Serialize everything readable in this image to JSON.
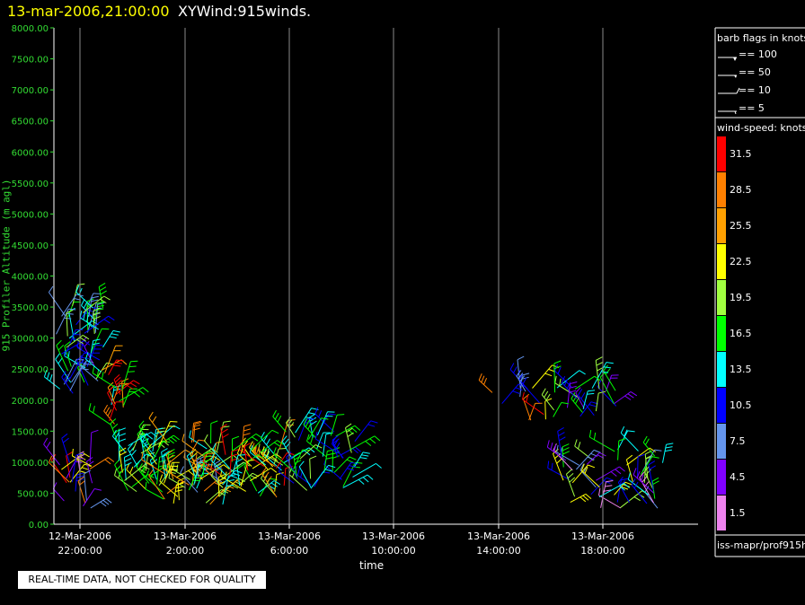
{
  "header": {
    "datetime": "13-mar-2006,21:00:00",
    "title": "XYWind:915winds."
  },
  "warning_text": "REAL-TIME DATA, NOT CHECKED FOR QUALITY",
  "legend": {
    "barb_title": "barb flags in knots",
    "barbs": [
      {
        "label": "== 100"
      },
      {
        "label": "== 50"
      },
      {
        "label": "== 10"
      },
      {
        "label": "== 5"
      }
    ],
    "wind_title": "wind-speed: knots",
    "bins": [
      {
        "label": "31.5",
        "color": "#ff0000"
      },
      {
        "label": "28.5",
        "color": "#ff8000"
      },
      {
        "label": "25.5",
        "color": "#ffa000"
      },
      {
        "label": "22.5",
        "color": "#ffff00"
      },
      {
        "label": "19.5",
        "color": "#a0ff40"
      },
      {
        "label": "16.5",
        "color": "#00ff00"
      },
      {
        "label": "13.5",
        "color": "#00ffff"
      },
      {
        "label": "10.5",
        "color": "#0000ff"
      },
      {
        "label": "7.5",
        "color": "#6495ed"
      },
      {
        "label": "4.5",
        "color": "#8000ff"
      },
      {
        "label": "1.5",
        "color": "#ee82ee"
      }
    ],
    "footer": "iss-mapr/prof915h"
  },
  "chart_data": {
    "type": "scatter",
    "title": "XYWind:915winds.",
    "xlabel": "time",
    "ylabel": "915 Profiler Altitude (m agl)",
    "ylim": [
      0,
      8000
    ],
    "ytick_labels": [
      "0.00",
      "500.00",
      "1000.00",
      "1500.00",
      "2000.00",
      "2500.00",
      "3000.00",
      "3500.00",
      "4000.00",
      "4500.00",
      "5000.00",
      "5500.00",
      "6000.00",
      "6500.00",
      "7000.00",
      "7500.00",
      "8000.00"
    ],
    "xtick_labels": [
      [
        "12-Mar-2006",
        "22:00:00"
      ],
      [
        "13-Mar-2006",
        "2:00:00"
      ],
      [
        "13-Mar-2006",
        "6:00:00"
      ],
      [
        "13-Mar-2006",
        "10:00:00"
      ],
      [
        "13-Mar-2006",
        "14:00:00"
      ],
      [
        "13-Mar-2006",
        "18:00:00"
      ]
    ],
    "grid": "vertical",
    "clusters": [
      {
        "time": "12-Mar 21:00-22:00",
        "alt_range_m": [
          2000,
          3450
        ],
        "speed_kt": "7.5-19.5"
      },
      {
        "time": "12-Mar 22:30-23:15",
        "alt_range_m": [
          1600,
          2500
        ],
        "speed_kt": "13.5-31.5"
      },
      {
        "time": "12-Mar 21:10-22:00",
        "alt_range_m": [
          300,
          1050
        ],
        "speed_kt": "4.5-31.5"
      },
      {
        "time": "12-Mar 23:30-13-Mar 8:30",
        "alt_range_m": [
          450,
          1450
        ],
        "speed_kt": "10.5-28.5"
      },
      {
        "time": "13-Mar 13:30-16:30",
        "alt_range_m": [
          1700,
          2200
        ],
        "speed_kt": "10.5-31.5"
      },
      {
        "time": "13-Mar 16:30-20:30",
        "alt_range_m": [
          250,
          1200
        ],
        "speed_kt": "4.5-19.5"
      }
    ]
  }
}
